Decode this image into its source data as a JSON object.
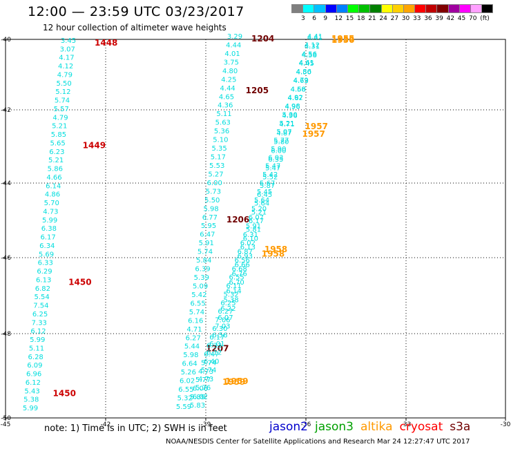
{
  "header": {
    "title": "12:00 — 23:59 UTC 03/23/2017",
    "subtitle": "12 hour collection of altimeter wave heights"
  },
  "colorbar": {
    "colors": [
      "#7f7f7f",
      "#00ffff",
      "#00bfff",
      "#0000ff",
      "#0080ff",
      "#00ff00",
      "#00c000",
      "#008000",
      "#ffff00",
      "#ffd000",
      "#ffa500",
      "#ff0000",
      "#c00000",
      "#800000",
      "#a000a0",
      "#ff00ff",
      "#ffa0ff",
      "#000000"
    ],
    "labels": [
      "3",
      "6",
      "9",
      "12",
      "15",
      "18",
      "21",
      "24",
      "27",
      "30",
      "33",
      "36",
      "39",
      "42",
      "45",
      "70",
      "(ft)"
    ]
  },
  "axes": {
    "lon_labels": [
      "-45",
      "-42",
      "-39",
      "-36",
      "-33",
      "-30"
    ],
    "lat_labels": [
      "-40",
      "-42",
      "-44",
      "-46",
      "-48",
      "-50"
    ]
  },
  "colors": {
    "track": "#00dddd",
    "time_jason2": "#cc0000",
    "time_other": "#700000",
    "time_altika": "#ff9900"
  },
  "tracks": [
    {
      "id": "track-1",
      "color": "#00dddd",
      "values": [
        "3.45",
        "3.07",
        "4.17",
        "4.12",
        "4.79",
        "5.50",
        "5.12",
        "5.74",
        "5.57",
        "4.79",
        "5.21",
        "5.85",
        "5.65",
        "6.23",
        "5.21",
        "5.86",
        "4.66",
        "6.14",
        "4.86",
        "5.70",
        "4.73",
        "5.99",
        "6.38",
        "6.17",
        "6.34",
        "5.69",
        "6.33",
        "6.29",
        "6.13",
        "6.82",
        "5.54",
        "7.54",
        "6.25",
        "7.33",
        "6.12",
        "5.99",
        "5.11",
        "6.28",
        "6.09",
        "6.96",
        "6.12",
        "5.43",
        "5.38",
        "5.99"
      ],
      "times": [
        {
          "label": "1448",
          "color": "#cc0000",
          "index": 0
        },
        {
          "label": "1449",
          "color": "#cc0000",
          "index": 12
        },
        {
          "label": "1450",
          "color": "#cc0000",
          "index": 28
        },
        {
          "label": "1450",
          "color": "#cc0000",
          "index": 41
        }
      ]
    },
    {
      "id": "track-2",
      "color": "#00dddd",
      "values": [
        "3.29",
        "4.44",
        "4.01",
        "3.75",
        "4.80",
        "4.25",
        "4.44",
        "4.65",
        "4.36",
        "5.11",
        "5.63",
        "5.36",
        "5.10",
        "5.35",
        "5.17",
        "5.53",
        "5.27",
        "6.00",
        "5.73",
        "5.50",
        "5.98",
        "6.77",
        "5.95",
        "6.47",
        "5.91",
        "5.74",
        "5.84",
        "6.39",
        "5.39",
        "5.09",
        "5.42",
        "6.55",
        "5.74",
        "6.16",
        "4.71",
        "6.27",
        "5.44",
        "5.98",
        "6.64",
        "5.26",
        "6.02",
        "6.55",
        "5.32",
        "5.59"
      ],
      "times": [
        {
          "label": "1204",
          "color": "#700000",
          "index": 0
        },
        {
          "label": "1205",
          "color": "#700000",
          "index": 6
        },
        {
          "label": "1206",
          "color": "#700000",
          "index": 21
        },
        {
          "label": "1207",
          "color": "#700000",
          "index": 36
        }
      ]
    },
    {
      "id": "track-3",
      "color": "#00dddd",
      "values": [
        "4.41",
        "4.12",
        "4.56",
        "4.61",
        "4.86",
        "4.79",
        "4.58",
        "4.67",
        "4.96",
        "4.96",
        "4.71",
        "4.87",
        "5.80",
        "6.00",
        "6.35",
        "5.47",
        "5.52",
        "5.87",
        "6.45",
        "5.64",
        "5.21",
        "6.17",
        "5.81",
        "6.10",
        "6.13",
        "6.93",
        "6.66",
        "6.76",
        "6.70",
        "6.14",
        "5.38",
        "6.22",
        "6.07",
        "7.03",
        "6.56",
        "6.01",
        "6.12",
        "6.40",
        "5.74",
        "4.73",
        "5.76",
        "6.02",
        "5.83"
      ],
      "times": [
        {
          "label": "1955",
          "color": "#ff9900",
          "index": 0
        },
        {
          "label": "1957",
          "color": "#ff9900",
          "index": 10
        },
        {
          "label": "1958",
          "color": "#ff9900",
          "index": 24
        },
        {
          "label": "1959",
          "color": "#ff9900",
          "index": 39
        }
      ]
    },
    {
      "id": "track-4",
      "color": "#00dddd",
      "values": [
        "4.41",
        "4.31",
        "4.58",
        "4.45",
        "4.50",
        "4.63",
        "4.66",
        "4.92",
        "4.98",
        "5.30",
        "5.21",
        "5.07",
        "5.77",
        "5.90",
        "6.03",
        "5.47",
        "5.42",
        "5.67",
        "5.45",
        "5.64",
        "5.20",
        "6.07",
        "5.91",
        "6.31",
        "6.02",
        "6.87",
        "6.56",
        "6.68",
        "6.55",
        "6.11",
        "5.32",
        "6.25",
        "6.27",
        "7.06",
        "6.30",
        "6.17",
        "6.33",
        "6.47",
        "5.74",
        "4.73",
        "5.77",
        "6.06",
        "5.89"
      ],
      "times": [
        {
          "label": "1956",
          "color": "#ff9900",
          "index": 0
        },
        {
          "label": "1957",
          "color": "#ff9900",
          "index": 11
        },
        {
          "label": "1958",
          "color": "#ff9900",
          "index": 25
        },
        {
          "label": "1959",
          "color": "#ff9900",
          "index": 40
        }
      ]
    }
  ],
  "note": "note:  1) Time is in UTC;  2) SWH is in feet",
  "legend": [
    {
      "label": "jason2",
      "color": "#0000cc"
    },
    {
      "label": "jason3",
      "color": "#00a000"
    },
    {
      "label": "altika",
      "color": "#ff9900"
    },
    {
      "label": "cryosat",
      "color": "#ff0000"
    },
    {
      "label": "s3a",
      "color": "#700000"
    }
  ],
  "footer": "NOAA/NESDIS Center for Satellite Applications and Research     Mar 24 12:27:47 UTC 2017"
}
